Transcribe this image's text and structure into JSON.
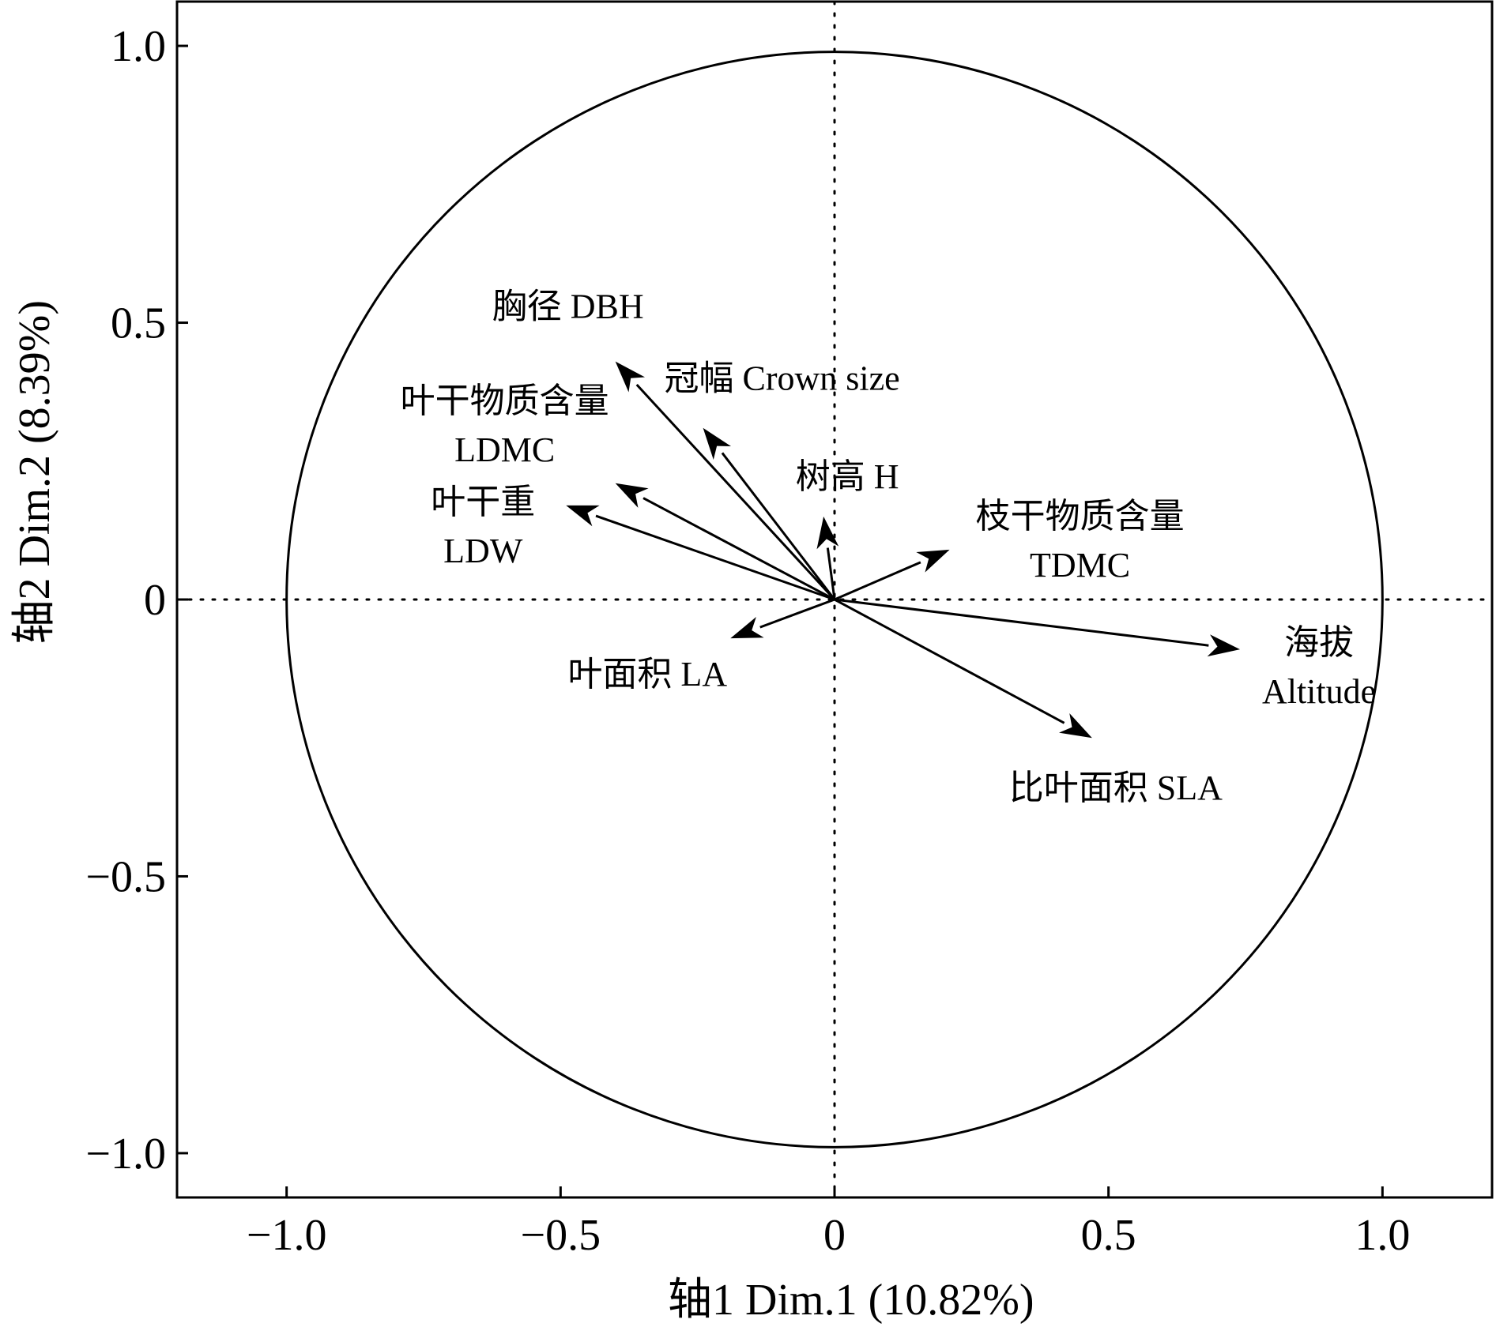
{
  "chart_data": {
    "type": "scatter",
    "title": "",
    "xlabel": "轴1 Dim.1 (10.82%)",
    "ylabel": "轴2 Dim.2 (8.39%)",
    "xlim": [
      -1.2,
      1.2
    ],
    "ylim": [
      -1.08,
      1.08
    ],
    "x_ticks": [
      -1.0,
      -0.5,
      0,
      0.5,
      1.0
    ],
    "x_tick_labels": [
      "−1.0",
      "−0.5",
      "0",
      "0.5",
      "1.0"
    ],
    "y_ticks": [
      1.0,
      0.5,
      0,
      -0.5,
      -1.0
    ],
    "y_tick_labels": [
      "1.0",
      "0.5",
      "0",
      "−0.5",
      "−1.0"
    ],
    "unit_circle": true,
    "grid": false,
    "reference_lines": "dotted lines at x=0 and y=0",
    "vectors": [
      {
        "label_lines": [
          "胸径 DBH"
        ],
        "x": -0.4,
        "y": 0.43
      },
      {
        "label_lines": [
          "冠幅 Crown size"
        ],
        "x": -0.24,
        "y": 0.31
      },
      {
        "label_lines": [
          "叶干物质含量",
          "LDMC"
        ],
        "x": -0.4,
        "y": 0.21
      },
      {
        "label_lines": [
          "叶干重",
          "LDW"
        ],
        "x": -0.49,
        "y": 0.17
      },
      {
        "label_lines": [
          "树高 H"
        ],
        "x": -0.02,
        "y": 0.15
      },
      {
        "label_lines": [
          "枝干物质含量",
          "TDMC"
        ],
        "x": 0.21,
        "y": 0.09
      },
      {
        "label_lines": [
          "叶面积 LA"
        ],
        "x": -0.19,
        "y": -0.07
      },
      {
        "label_lines": [
          "比叶面积 SLA"
        ],
        "x": 0.47,
        "y": -0.25
      },
      {
        "label_lines": [
          "海拔",
          "Altitude"
        ],
        "x": 0.74,
        "y": -0.09
      }
    ]
  }
}
